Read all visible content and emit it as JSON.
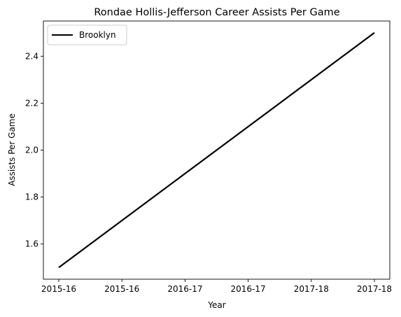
{
  "chart_data": {
    "type": "line",
    "title": "Rondae Hollis-Jefferson Career Assists Per Game",
    "xlabel": "Year",
    "ylabel": "Assists Per Game",
    "x_tick_labels": [
      "2015-16",
      "2015-16",
      "2016-17",
      "2016-17",
      "2017-18",
      "2017-18"
    ],
    "x_range": [
      0,
      2
    ],
    "ylim": [
      1.45,
      2.55
    ],
    "y_ticks": [
      1.6,
      1.8,
      2.0,
      2.2,
      2.4
    ],
    "grid": false,
    "legend_position": "top-left",
    "series": [
      {
        "name": "Brooklyn",
        "color": "#000000",
        "x": [
          0,
          1,
          2
        ],
        "y": [
          1.5,
          2.0,
          2.5
        ]
      }
    ]
  }
}
